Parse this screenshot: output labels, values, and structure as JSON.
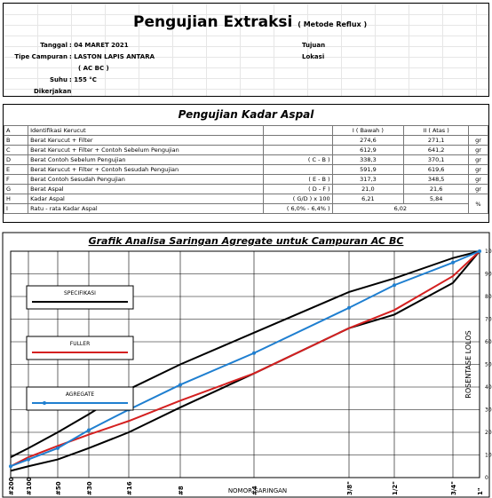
{
  "header": {
    "title": "Pengujian Extraksi",
    "method": "( Metode Reflux )",
    "tanggal_label": "Tanggal",
    "tanggal": ": 04 MARET 2021",
    "tipe_label": "Tipe Campuran",
    "tipe": ": LASTON LAPIS ANTARA",
    "tipe2": "( AC BC )",
    "suhu_label": "Suhu",
    "suhu": ": 155 °C",
    "dikerjakan": "Dikerjakan",
    "tujuan": "Tujuan",
    "lokasi": "Lokasi"
  },
  "table": {
    "title": "Pengujian Kadar Aspal",
    "rows": [
      [
        "A",
        "Identifikasi Kerucut",
        null,
        "I ( Bawah )",
        "II ( Atas )",
        null
      ],
      [
        "B",
        "Berat Kerucut + Filter",
        null,
        "274,6",
        "271,1",
        "gr"
      ],
      [
        "C",
        "Berat Kerucut + Filter + Contoh Sebelum Pengujian",
        null,
        "612,9",
        "641,2",
        "gr"
      ],
      [
        "D",
        "Berat Contoh Sebelum Pengujian",
        "( C - B )",
        "338,3",
        "370,1",
        "gr"
      ],
      [
        "E",
        "Berat Kerucut + Filter + Contoh Sesudah Pengujian",
        null,
        "591,9",
        "619,6",
        "gr"
      ],
      [
        "F",
        "Berat Contoh Sesudah Pengujian",
        "( E - B )",
        "317,3",
        "348,5",
        "gr"
      ],
      [
        "G",
        "Berat Aspal",
        "( D - F )",
        "21,0",
        "21,6",
        "gr"
      ],
      [
        "H",
        "Kadar Aspal",
        "( G/D ) x 100",
        "6,21",
        "5,84",
        "%"
      ],
      [
        "I",
        "Ratu - rata Kadar Aspal",
        "( 6,0% - 6,4% )",
        "6,02"
      ]
    ]
  },
  "chart_data": {
    "type": "line",
    "title": "Grafik Analisa Saringan Agregate untuk Campuran AC BC",
    "x_label": "NOMOR SARINGAN",
    "y_label": "ROSENTASE LOLOS",
    "categories": [
      "#200",
      "#100",
      "#50",
      "#30",
      "#16",
      "#8",
      "#4",
      "3/8\"",
      "1/2\"",
      "3/4\"",
      "1\""
    ],
    "ylim": [
      0,
      100
    ],
    "yticks": [
      0,
      10,
      20,
      30,
      40,
      50,
      60,
      70,
      80,
      90,
      100
    ],
    "grid": true,
    "series": [
      {
        "name": "SPECIFIKASI",
        "color": "#000000",
        "values": [
          9,
          13,
          20,
          28,
          39,
          50,
          64,
          82,
          88,
          97,
          100
        ]
      },
      {
        "name": "SPECIFIKASI",
        "color": "#000000",
        "values": [
          3,
          5,
          8,
          13,
          20,
          31,
          46,
          66,
          72,
          86,
          100
        ]
      },
      {
        "name": "FULLER",
        "color": "#d42020",
        "values": [
          5,
          9,
          14,
          19,
          25,
          34,
          46,
          66,
          74,
          89,
          100
        ]
      },
      {
        "name": "AGREGATE",
        "color": "#1f7fd0",
        "markers": true,
        "values": [
          5,
          8,
          13,
          21,
          30,
          41,
          55,
          75,
          85,
          95,
          100
        ]
      }
    ]
  }
}
